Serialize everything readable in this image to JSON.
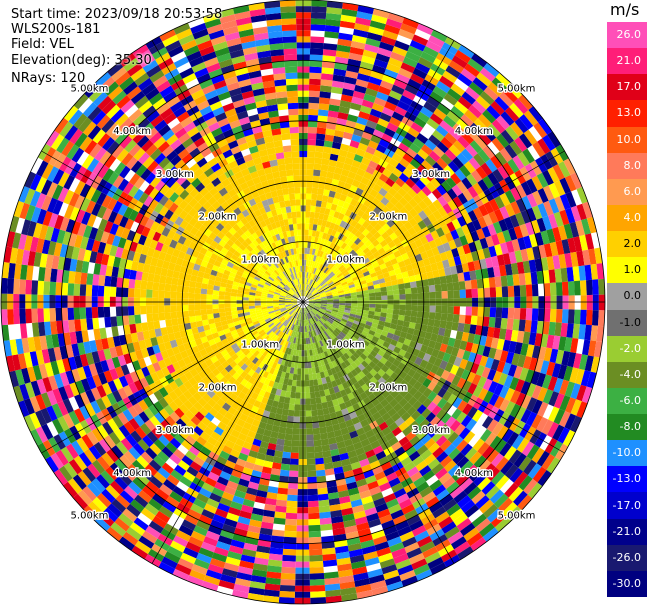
{
  "header": {
    "start_time": "Start time: 2023/09/18 20:53:58",
    "instrument": "WLS200s-181",
    "field": "Field: VEL",
    "elevation": "Elevation(deg): 35.30",
    "nrays": "NRays: 120"
  },
  "colorbar": {
    "unit": "m/s",
    "ticks": [
      "26.0",
      "21.0",
      "17.0",
      "13.0",
      "10.0",
      "8.0",
      "6.0",
      "4.0",
      "2.0",
      "1.0",
      "0.0",
      "-1.0",
      "-2.0",
      "-4.0",
      "-6.0",
      "-8.0",
      "-10.0",
      "-13.0",
      "-17.0",
      "-21.0",
      "-26.0",
      "-30.0"
    ],
    "colors": [
      "#ff4fb8",
      "#ff1e78",
      "#e00018",
      "#ff2000",
      "#ff5a10",
      "#ff7a5a",
      "#ff9a50",
      "#ffa500",
      "#ffd000",
      "#ffff00",
      "#a0a0a0",
      "#707070",
      "#9acd32",
      "#6b8e23",
      "#3cb043",
      "#228b22",
      "#1e90ff",
      "#0000ff",
      "#0000cd",
      "#00008b",
      "#191970",
      "#000080"
    ]
  },
  "chart_data": {
    "type": "heatmap",
    "title": "",
    "field": "VEL",
    "unit": "m/s",
    "nrays": 120,
    "range_rings_km": [
      1.0,
      2.0,
      3.0,
      4.0,
      5.0
    ],
    "ring_labels": [
      "1.00km",
      "2.00km",
      "3.00km",
      "4.00km",
      "5.00km"
    ],
    "max_range_km": 5.0,
    "color_scale": {
      "bounds": [
        -30,
        -26,
        -21,
        -17,
        -13,
        -10,
        -8,
        -6,
        -4,
        -2,
        -1,
        0,
        1,
        2,
        4,
        6,
        8,
        10,
        13,
        17,
        21,
        26,
        30
      ],
      "colors": [
        "#000080",
        "#191970",
        "#00008b",
        "#0000cd",
        "#0000ff",
        "#1e90ff",
        "#228b22",
        "#3cb043",
        "#6b8e23",
        "#9acd32",
        "#707070",
        "#a0a0a0",
        "#ffff00",
        "#ffd000",
        "#ffa500",
        "#ff9a50",
        "#ff7a5a",
        "#ff5a10",
        "#ff2000",
        "#e00018",
        "#ff1e78",
        "#ff4fb8"
      ]
    },
    "field_pattern": {
      "positive_sector_deg": [
        200,
        80
      ],
      "negative_sector_deg": [
        80,
        200
      ],
      "noise_begins_km": 2.7,
      "peak_velocity_ms": 3.0
    }
  }
}
